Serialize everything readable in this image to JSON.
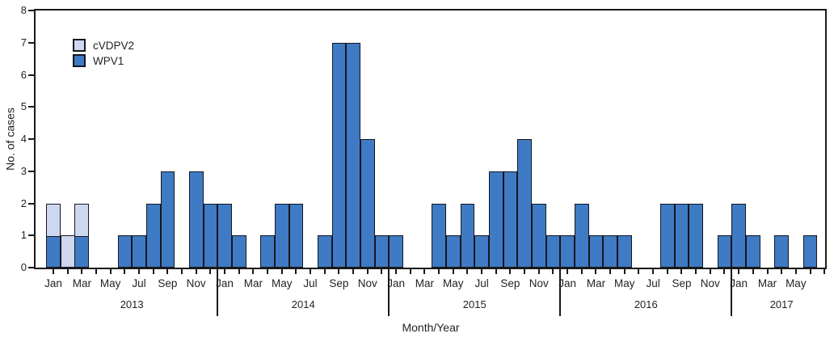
{
  "chart_data": {
    "type": "bar",
    "stacked": true,
    "xlabel": "Month/Year",
    "ylabel": "No. of cases",
    "ylim": [
      0,
      8
    ],
    "yticks": [
      0,
      1,
      2,
      3,
      4,
      5,
      6,
      7,
      8
    ],
    "grid": false,
    "legend_position": "top-left-inside",
    "axis_color": "#1a1a1a",
    "text_color": "#231f20",
    "month_tick_labels": [
      "Jan",
      "",
      "Mar",
      "",
      "May",
      "",
      "Jul",
      "",
      "Sep",
      "",
      "Nov",
      "",
      "Jan",
      "",
      "Mar",
      "",
      "May",
      "",
      "Jul",
      "",
      "Sep",
      "",
      "Nov",
      "",
      "Jan",
      "",
      "Mar",
      "",
      "May",
      "",
      "Jul",
      "",
      "Sep",
      "",
      "Nov",
      "",
      "Jan",
      "",
      "Mar",
      "",
      "May",
      "",
      "Jul",
      "",
      "Sep",
      "",
      "Nov",
      "",
      "Jan",
      "",
      "Mar",
      "",
      "May",
      "",
      ""
    ],
    "years": [
      {
        "label": "2013",
        "first_tick": 0,
        "tick_count": 12
      },
      {
        "label": "2014",
        "first_tick": 12,
        "tick_count": 12
      },
      {
        "label": "2015",
        "first_tick": 24,
        "tick_count": 12
      },
      {
        "label": "2016",
        "first_tick": 36,
        "tick_count": 12
      },
      {
        "label": "2017",
        "first_tick": 48,
        "tick_count": 7
      }
    ],
    "year_divider_after": [
      11,
      23,
      35,
      47
    ],
    "stack_bottom_to_top": [
      "WPV1",
      "cVDPV2"
    ],
    "series": [
      {
        "name": "cVDPV2",
        "color": "#cdd7ef",
        "values": [
          1,
          1,
          1,
          0,
          0,
          0,
          0,
          0,
          0,
          0,
          0,
          0,
          0,
          0,
          0,
          0,
          0,
          0,
          0,
          0,
          0,
          0,
          0,
          0,
          0,
          0,
          0,
          0,
          0,
          0,
          0,
          0,
          0,
          0,
          0,
          0,
          0,
          0,
          0,
          0,
          0,
          0,
          0,
          0,
          0,
          0,
          0,
          0,
          0,
          0,
          0,
          0,
          0,
          0
        ]
      },
      {
        "name": "WPV1",
        "color": "#3e7bc4",
        "values": [
          1,
          0,
          1,
          0,
          0,
          1,
          1,
          2,
          3,
          0,
          3,
          2,
          2,
          1,
          0,
          1,
          2,
          2,
          0,
          1,
          7,
          7,
          4,
          1,
          1,
          0,
          0,
          2,
          1,
          2,
          1,
          3,
          3,
          4,
          2,
          1,
          1,
          2,
          1,
          1,
          1,
          0,
          0,
          2,
          2,
          2,
          0,
          1,
          2,
          1,
          0,
          1,
          0,
          1
        ]
      }
    ]
  }
}
